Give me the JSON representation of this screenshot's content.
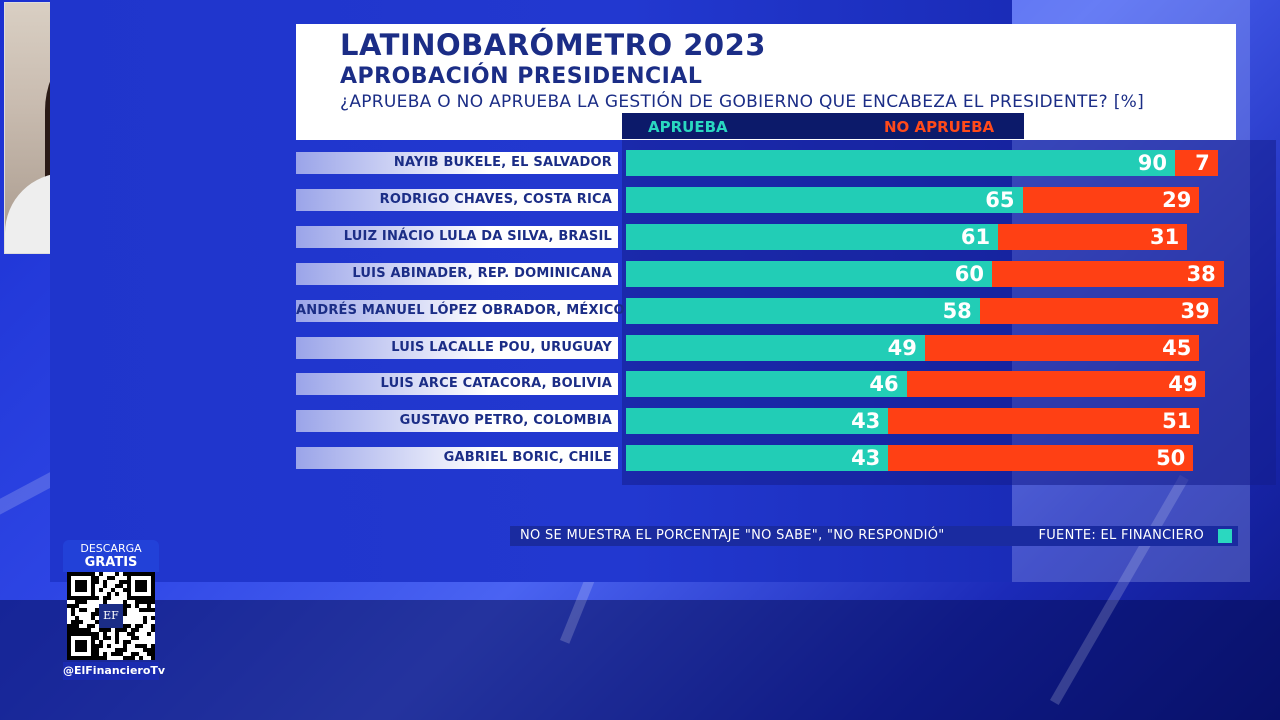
{
  "colors": {
    "aprueba": "#22cdb6",
    "no_aprueba": "#ff4014",
    "title": "#1b2d86"
  },
  "chart_data": {
    "type": "bar",
    "orientation": "horizontal",
    "stacked": true,
    "title": "LATINOBARÓMETRO 2023",
    "subtitle": "APROBACIÓN PRESIDENCIAL",
    "question": "¿APRUEBA O NO APRUEBA LA GESTIÓN DE GOBIERNO QUE ENCABEZA EL PRESIDENTE? [%]",
    "legend_position": "top",
    "categories": [
      "NAYIB BUKELE, EL SALVADOR",
      "RODRIGO CHAVES, COSTA RICA",
      "LUIZ INÁCIO LULA DA SILVA, BRASIL",
      "LUIS ABINADER, REP. DOMINICANA",
      "ANDRÉS MANUEL LÓPEZ OBRADOR, MÉXICO",
      "LUIS LACALLE POU, URUGUAY",
      "LUIS ARCE CATACORA, BOLIVIA",
      "GUSTAVO PETRO, COLOMBIA",
      "GABRIEL BORIC, CHILE"
    ],
    "series": [
      {
        "name": "APRUEBA",
        "values": [
          90,
          65,
          61,
          60,
          58,
          49,
          46,
          43,
          43
        ]
      },
      {
        "name": "NO APRUEBA",
        "values": [
          7,
          29,
          31,
          38,
          39,
          45,
          49,
          51,
          50
        ]
      }
    ],
    "xlim": [
      0,
      100
    ],
    "footnote": "NO SE MUESTRA EL PORCENTAJE \"NO SABE\", \"NO RESPONDIÓ\"",
    "source": "FUENTE: EL FINANCIERO"
  },
  "badge": {
    "line1": "DESCARGA",
    "line2": "GRATIS",
    "logo": "EF",
    "handle": "@ElFinancieroTv"
  }
}
